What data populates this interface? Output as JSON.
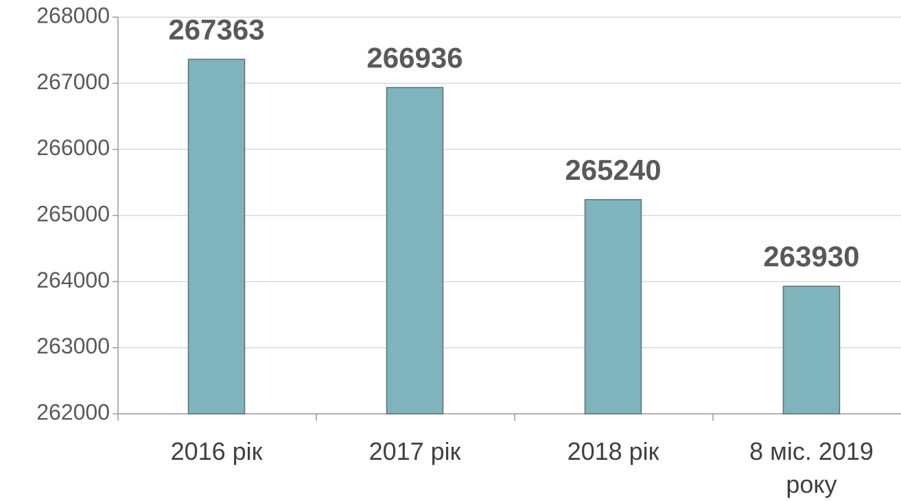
{
  "chart_data": {
    "type": "bar",
    "categories": [
      "2016 рік",
      "2017 рік",
      "2018 рік",
      "8 міс. 2019 року"
    ],
    "values": [
      267363,
      266936,
      265240,
      263930
    ],
    "color": "#7fb4bd",
    "ylim": [
      262000,
      268000
    ],
    "yticks": [
      262000,
      263000,
      264000,
      265000,
      266000,
      267000,
      268000
    ],
    "grid": true
  }
}
